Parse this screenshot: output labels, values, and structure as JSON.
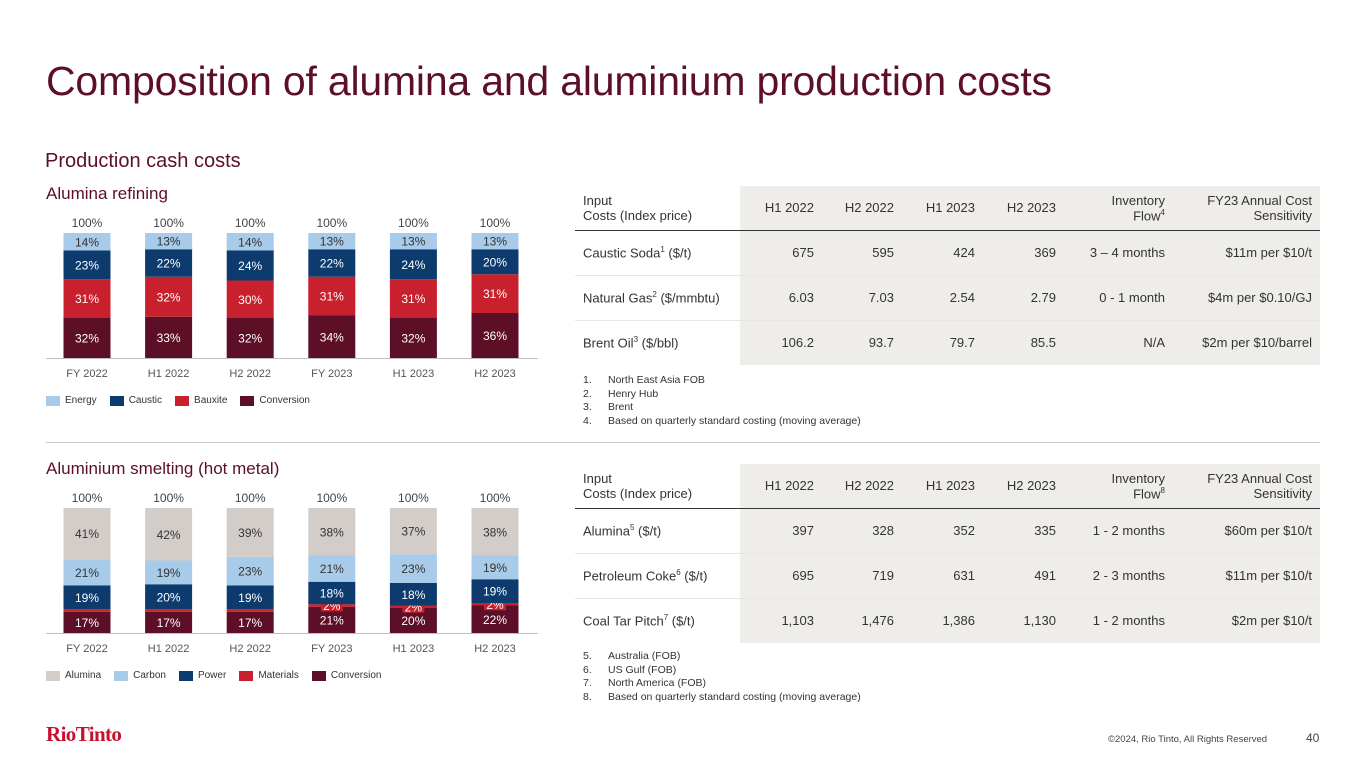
{
  "title": "Composition of alumina and aluminium production costs",
  "subtitle": "Production cash costs",
  "colors": {
    "title": "#5c0f26",
    "energy": "#a7cbe8",
    "caustic": "#0d3b6e",
    "bauxite": "#c8202c",
    "conversion": "#5c0f26",
    "alumina": "#d3cdc9",
    "carbon": "#a7cbe8",
    "power": "#0d3b6e",
    "materials": "#c8202c"
  },
  "alumina_section": {
    "title": "Alumina refining",
    "chart_data": {
      "type": "bar",
      "stacked": true,
      "categories": [
        "FY 2022",
        "H1 2022",
        "H2 2022",
        "FY 2023",
        "H1 2023",
        "H2 2023"
      ],
      "totals": [
        "100%",
        "100%",
        "100%",
        "100%",
        "100%",
        "100%"
      ],
      "series": [
        {
          "name": "Conversion",
          "values": [
            32,
            33,
            32,
            34,
            32,
            36
          ]
        },
        {
          "name": "Bauxite",
          "values": [
            31,
            32,
            30,
            31,
            31,
            31
          ]
        },
        {
          "name": "Caustic",
          "values": [
            23,
            22,
            24,
            22,
            24,
            20
          ]
        },
        {
          "name": "Energy",
          "values": [
            14,
            13,
            14,
            13,
            13,
            13
          ]
        }
      ],
      "ylim": [
        0,
        100
      ]
    },
    "legend": [
      "Energy",
      "Caustic",
      "Bauxite",
      "Conversion"
    ],
    "table": {
      "headers": [
        "Input\nCosts (Index price)",
        "H1 2022",
        "H2 2022",
        "H1 2023",
        "H2 2023",
        "Inventory\nFlow4",
        "FY23 Annual Cost\nSensitivity"
      ],
      "h0a": "Input",
      "h0b": "Costs (Index price)",
      "h1": "H1 2022",
      "h2": "H2 2022",
      "h3": "H1 2023",
      "h4": "H2 2023",
      "h5a": "Inventory",
      "h5b": "Flow",
      "h5sup": "4",
      "h6a": "FY23 Annual Cost",
      "h6b": "Sensitivity",
      "rows": [
        {
          "name": "Caustic Soda",
          "sup": "1",
          "unit": " ($/t)",
          "v": [
            "675",
            "595",
            "424",
            "369",
            "3 – 4 months",
            "$11m per $10/t"
          ]
        },
        {
          "name": "Natural Gas",
          "sup": "2",
          "unit": " ($/mmbtu)",
          "v": [
            "6.03",
            "7.03",
            "2.54",
            "2.79",
            "0 - 1 month",
            "$4m per $0.10/GJ"
          ]
        },
        {
          "name": "Brent Oil",
          "sup": "3",
          "unit": " ($/bbl)",
          "v": [
            "106.2",
            "93.7",
            "79.7",
            "85.5",
            "N/A",
            "$2m per $10/barrel"
          ]
        }
      ]
    },
    "notes": [
      {
        "num": "1.",
        "text": "North East Asia FOB"
      },
      {
        "num": "2.",
        "text": "Henry Hub"
      },
      {
        "num": "3.",
        "text": "Brent"
      },
      {
        "num": "4.",
        "text": "Based on quarterly standard costing (moving average)"
      }
    ]
  },
  "aluminium_section": {
    "title": "Aluminium smelting (hot metal)",
    "chart_data": {
      "type": "bar",
      "stacked": true,
      "categories": [
        "FY 2022",
        "H1 2022",
        "H2 2022",
        "FY 2023",
        "H1 2023",
        "H2 2023"
      ],
      "totals": [
        "100%",
        "100%",
        "100%",
        "100%",
        "100%",
        "100%"
      ],
      "series": [
        {
          "name": "Conversion",
          "values": [
            17,
            17,
            17,
            21,
            20,
            22
          ]
        },
        {
          "name": "Materials",
          "values": [
            2,
            2,
            2,
            2,
            2,
            2
          ],
          "labels": [
            "",
            "",
            "",
            "2%",
            "2%",
            "2%"
          ]
        },
        {
          "name": "Power",
          "values": [
            19,
            20,
            19,
            18,
            18,
            19
          ]
        },
        {
          "name": "Carbon",
          "values": [
            21,
            19,
            23,
            21,
            23,
            19
          ]
        },
        {
          "name": "Alumina",
          "values": [
            41,
            42,
            39,
            38,
            37,
            38
          ]
        }
      ],
      "ylim": [
        0,
        100
      ]
    },
    "legend": [
      "Alumina",
      "Carbon",
      "Power",
      "Materials",
      "Conversion"
    ],
    "table": {
      "h0a": "Input",
      "h0b": "Costs (Index price)",
      "h1": "H1 2022",
      "h2": "H2 2022",
      "h3": "H1 2023",
      "h4": "H2 2023",
      "h5a": "Inventory",
      "h5b": "Flow",
      "h5sup": "8",
      "h6a": "FY23 Annual Cost",
      "h6b": "Sensitivity",
      "rows": [
        {
          "name": "Alumina",
          "sup": "5",
          "unit": " ($/t)",
          "v": [
            "397",
            "328",
            "352",
            "335",
            "1 - 2 months",
            "$60m per $10/t"
          ]
        },
        {
          "name": "Petroleum Coke",
          "sup": "6",
          "unit": " ($/t)",
          "v": [
            "695",
            "719",
            "631",
            "491",
            "2 - 3 months",
            "$11m per $10/t"
          ]
        },
        {
          "name": "Coal Tar Pitch",
          "sup": "7",
          "unit": " ($/t)",
          "v": [
            "1,103",
            "1,476",
            "1,386",
            "1,130",
            "1 - 2 months",
            "$2m per $10/t"
          ]
        }
      ]
    },
    "notes": [
      {
        "num": "5.",
        "text": "Australia (FOB)"
      },
      {
        "num": "6.",
        "text": "US Gulf (FOB)"
      },
      {
        "num": "7.",
        "text": "North America (FOB)"
      },
      {
        "num": "8.",
        "text": "Based on quarterly standard costing (moving average)"
      }
    ]
  },
  "footer": {
    "logo": "RioTinto",
    "copyright": "©2024, Rio Tinto, All Rights Reserved",
    "page": "40"
  }
}
